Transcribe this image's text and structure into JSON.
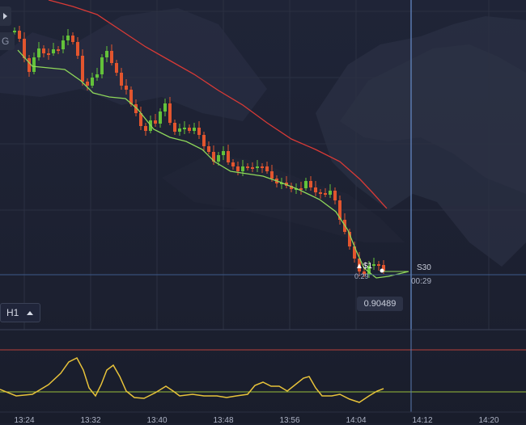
{
  "toolbar": {
    "expand_icon": "play-triangle-icon",
    "g_button_label": "G"
  },
  "timeframe": {
    "label": "H1",
    "caret_icon": "caret-up-icon"
  },
  "current_price": "0.90489",
  "expiry": {
    "label": "S30",
    "timer": "00:29"
  },
  "deal": {
    "label": "▲$1",
    "sub": "0:29"
  },
  "x_axis": {
    "ticks": [
      "13:24",
      "13:32",
      "13:40",
      "13:48",
      "13:56",
      "14:04",
      "14:12",
      "14:20"
    ]
  },
  "colors": {
    "background": "#1c2030",
    "bull_candle": "#63c23a",
    "bear_candle": "#e2552e",
    "moving_average_fast": "#8fd85a",
    "moving_average_slow": "#d83a36",
    "oscillator": "#e8c33a",
    "oscillator_upper_line": "#b8403a",
    "oscillator_lower_line": "#9bbf3a",
    "crosshair": "#5a7ab0",
    "grid": "#2b3042"
  }
}
